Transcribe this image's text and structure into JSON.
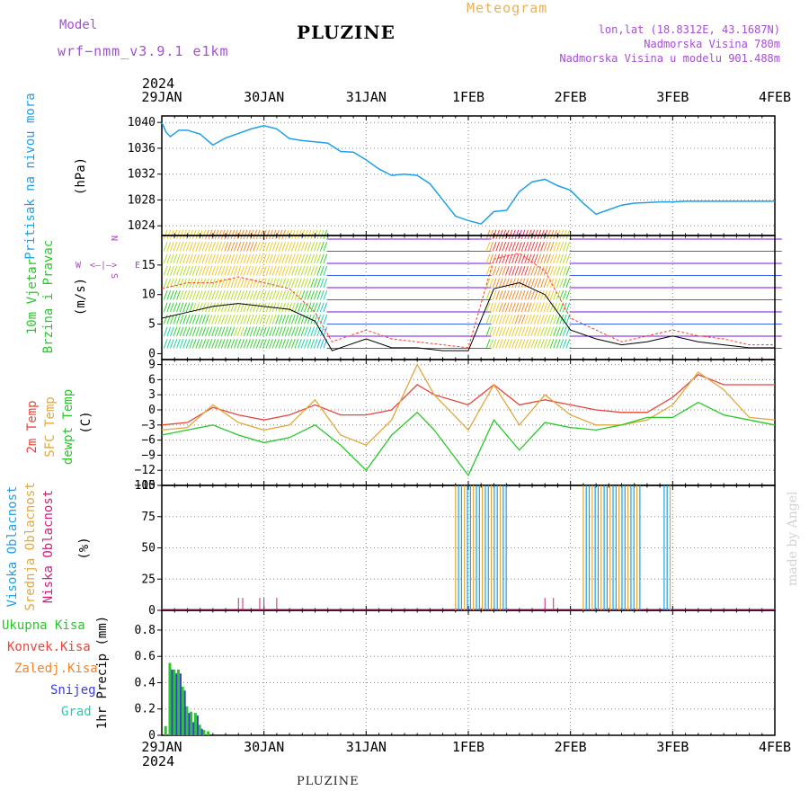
{
  "header": {
    "model_label": "Model",
    "model_name": "wrf−nmm_v3.9.1  e1km",
    "title": "PLUZINE",
    "meteogram_label": "Meteogram",
    "lonlat": "lon,lat (18.8312E, 43.1687N)",
    "elevation": "Nadmorska Visina 780m",
    "model_elevation": "Nadmorska Visina u modelu 901.488m",
    "year": "2024"
  },
  "footer": {
    "station": "PLUZINE",
    "year": "2024",
    "made_by": "made by Angel"
  },
  "colors": {
    "pressure": "#1ea0e6",
    "temp2m": "#e8463c",
    "sfctemp": "#e0a83c",
    "dewpt": "#28c828",
    "high_cloud": "#1ea0e6",
    "mid_cloud": "#e0a83c",
    "low_cloud": "#d21e78",
    "total_precip": "#28c828",
    "conv_precip": "#e8463c",
    "frz_precip": "#f0842c",
    "snow": "#3c3cdc",
    "graupel": "#28c8b4",
    "wind_compass": "#b040c8"
  },
  "chart_data": [
    {
      "type": "line",
      "panel": "pressure",
      "x_labels": [
        "29JAN",
        "30JAN",
        "31JAN",
        "1FEB",
        "2FEB",
        "3FEB",
        "4FEB"
      ],
      "x_range": [
        "2024-01-29T00",
        "2024-02-04T00"
      ],
      "ylabel_left": "Pritisak na nivou mora",
      "ylabel_unit": "(hPa)",
      "yticks": [
        "1040",
        "1036",
        "1032",
        "1028",
        "1024"
      ],
      "ylim": [
        1022.5,
        1041
      ],
      "grid": true,
      "series": [
        {
          "x": [
            0,
            1,
            2,
            4,
            6,
            9,
            12,
            15,
            18,
            21,
            24,
            27,
            30,
            33,
            36,
            39,
            42,
            45,
            48,
            51,
            54,
            57,
            60,
            63,
            66,
            69,
            72,
            75,
            78,
            81,
            84,
            87,
            90,
            93,
            96,
            99,
            102,
            105,
            108,
            111,
            114,
            117,
            120,
            123,
            126,
            129,
            132,
            135,
            138,
            141,
            144
          ],
          "y": [
            1040,
            1038.5,
            1037.8,
            1038.8,
            1038.8,
            1038.2,
            1036.5,
            1037.6,
            1038.3,
            1039,
            1039.5,
            1039,
            1037.5,
            1037.2,
            1037,
            1036.8,
            1035.5,
            1035.4,
            1034.2,
            1032.8,
            1031.8,
            1032,
            1031.8,
            1030.5,
            1028,
            1025.5,
            1024.8,
            1024.3,
            1026.2,
            1026.4,
            1029.3,
            1030.8,
            1031.2,
            1030.2,
            1029.5,
            1027.5,
            1025.8,
            1026.5,
            1027.2,
            1027.5,
            1027.6,
            1027.7,
            1027.7,
            1027.8,
            1027.8,
            1027.8,
            1027.8,
            1027.8,
            1027.8,
            1027.8,
            1027.8
          ]
        }
      ]
    },
    {
      "type": "barbs",
      "panel": "wind",
      "ylabel_left": [
        "10m Vjetar",
        "Brzina i Pravac"
      ],
      "ylabel_unit": "(m/s)",
      "yticks": [
        "15",
        "10",
        "5",
        "0"
      ],
      "ylim": [
        -1,
        20
      ],
      "compass": {
        "n": "N",
        "s": "S",
        "w": "W",
        "e": "E",
        "arrows": "<–|–>"
      },
      "series": [
        {
          "name": "speed",
          "x": [
            0,
            6,
            12,
            18,
            24,
            30,
            36,
            40,
            48,
            54,
            60,
            66,
            72,
            78,
            84,
            90,
            96,
            102,
            108,
            114,
            120,
            126,
            132,
            138,
            144
          ],
          "y": [
            6,
            7,
            8,
            8.5,
            8,
            7.5,
            5.5,
            0.5,
            2.5,
            1,
            1,
            0.5,
            0.5,
            11,
            12,
            10,
            4,
            2.5,
            1.5,
            2,
            3,
            2,
            1.5,
            1,
            1
          ]
        },
        {
          "name": "gust",
          "x": [
            0,
            6,
            12,
            18,
            24,
            30,
            36,
            40,
            48,
            54,
            60,
            66,
            72,
            78,
            84,
            90,
            96,
            102,
            108,
            114,
            120,
            126,
            132,
            138,
            144
          ],
          "y": [
            11,
            12,
            12,
            13,
            12,
            11,
            7,
            2,
            4,
            2.5,
            2,
            1.5,
            1,
            16,
            17,
            14,
            6,
            4,
            2,
            3,
            4,
            3,
            2.5,
            1.5,
            1.5
          ]
        }
      ]
    },
    {
      "type": "line",
      "panel": "temperature",
      "ylabel_left": [
        "2m Temp",
        "SFC Temp",
        "dewpt Temp"
      ],
      "ylabel_unit": "(C)",
      "yticks": [
        "9",
        "6",
        "3",
        "0",
        "−3",
        "−6",
        "−9",
        "−12",
        "−15"
      ],
      "ylim": [
        -15,
        10
      ],
      "grid": true,
      "series": [
        {
          "name": "2m Temp",
          "x": [
            0,
            6,
            12,
            18,
            24,
            30,
            36,
            42,
            48,
            54,
            60,
            64,
            72,
            78,
            84,
            90,
            96,
            102,
            108,
            114,
            120,
            126,
            132,
            138,
            144
          ],
          "y": [
            -3,
            -2.5,
            0.5,
            -1,
            -2,
            -1,
            1,
            -1,
            -1,
            0,
            5,
            3,
            1,
            5,
            1,
            2,
            1,
            0,
            -0.5,
            -0.5,
            2.5,
            7,
            5,
            5,
            5
          ]
        },
        {
          "name": "SFC Temp",
          "x": [
            0,
            6,
            12,
            18,
            24,
            30,
            36,
            42,
            48,
            54,
            60,
            64,
            72,
            78,
            84,
            90,
            96,
            102,
            108,
            114,
            120,
            126,
            132,
            138,
            144
          ],
          "y": [
            -4,
            -3.5,
            1,
            -2.5,
            -4,
            -3,
            2,
            -5,
            -7,
            -2,
            9,
            3,
            -4,
            5,
            -3,
            3,
            -1,
            -3,
            -3,
            -2,
            1,
            7.5,
            4,
            -1.5,
            -2
          ]
        },
        {
          "name": "dewpt Temp",
          "x": [
            0,
            6,
            12,
            18,
            24,
            30,
            36,
            42,
            48,
            54,
            60,
            64,
            72,
            78,
            84,
            90,
            96,
            102,
            108,
            114,
            120,
            126,
            132,
            138,
            144
          ],
          "y": [
            -5,
            -4,
            -3,
            -5,
            -6.5,
            -5.5,
            -3,
            -7,
            -12,
            -5,
            -0.5,
            -4,
            -13,
            -2,
            -8,
            -2.5,
            -3.5,
            -4,
            -3,
            -1.5,
            -1.5,
            1.5,
            -1,
            -2,
            -3
          ]
        }
      ]
    },
    {
      "type": "bar",
      "panel": "cloud",
      "ylabel_left": [
        "Visoka Oblacnost",
        "Srednja Oblacnost",
        "Niska Oblacnost"
      ],
      "ylabel_unit": "(%)",
      "yticks": [
        "100",
        "75",
        "50",
        "25",
        "0"
      ],
      "ylim": [
        0,
        100
      ],
      "grid": true,
      "series": [
        {
          "name": "Visoka Oblacnost",
          "x_ranges": [
            [
              69,
              81
            ],
            [
              99,
              113
            ],
            [
              118,
              120
            ]
          ],
          "value": 100
        },
        {
          "name": "Srednja Oblacnost",
          "x_ranges": [
            [
              69,
              81
            ],
            [
              99,
              113
            ],
            [
              118,
              120
            ]
          ],
          "value": 100
        },
        {
          "name": "Niska Oblacnost",
          "x_points": [
            18,
            19,
            23,
            24,
            27,
            90,
            92
          ],
          "value": 10
        }
      ]
    },
    {
      "type": "bar",
      "panel": "precip",
      "ylabel_left": [
        "Ukupna Kisa",
        "Konvek.Kisa",
        "Zaledj.Kisa",
        "Snijeg",
        "Grad"
      ],
      "ylabel_unit": "1hr Precip (mm)",
      "yticks": [
        "0.8",
        "0.6",
        "0.4",
        "0.2",
        "0"
      ],
      "ylim": [
        0,
        0.95
      ],
      "grid": true,
      "series": [
        {
          "name": "Ukupna Kisa",
          "x": [
            1,
            2,
            3,
            4,
            5,
            6,
            7,
            8,
            9,
            10,
            11
          ],
          "y": [
            0.07,
            0.55,
            0.5,
            0.5,
            0.37,
            0.22,
            0.18,
            0.17,
            0.08,
            0.04,
            0.03
          ]
        },
        {
          "name": "Snijeg",
          "x": [
            2,
            3,
            4,
            5,
            6,
            7,
            8,
            9
          ],
          "y": [
            0.5,
            0.47,
            0.47,
            0.34,
            0.17,
            0.1,
            0.15,
            0.05
          ]
        }
      ]
    }
  ]
}
